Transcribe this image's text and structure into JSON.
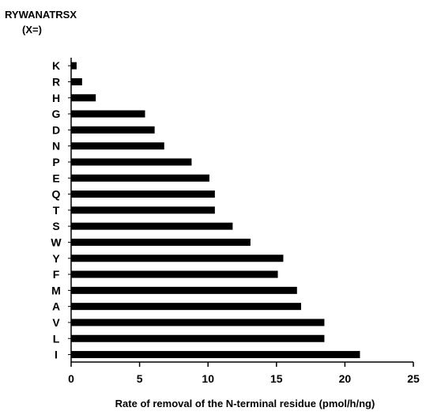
{
  "chart_data": {
    "type": "bar",
    "orientation": "horizontal",
    "title_line1": "RYWANATRSX",
    "title_line2": "(X=)",
    "xlabel": "Rate of removal of the N-terminal residue (pmol/h/ng)",
    "ylabel": "",
    "xlim": [
      0,
      25
    ],
    "xticks": [
      0,
      5,
      10,
      15,
      20,
      25
    ],
    "grid": false,
    "bar_color": "#000000",
    "categories": [
      "K",
      "R",
      "H",
      "G",
      "D",
      "N",
      "P",
      "E",
      "Q",
      "T",
      "S",
      "W",
      "Y",
      "F",
      "M",
      "A",
      "V",
      "L",
      "I"
    ],
    "values": [
      0.4,
      0.8,
      1.8,
      5.4,
      6.1,
      6.8,
      8.8,
      10.1,
      10.5,
      10.5,
      11.8,
      13.1,
      15.5,
      15.1,
      16.5,
      16.8,
      18.5,
      18.5,
      21.1
    ]
  }
}
